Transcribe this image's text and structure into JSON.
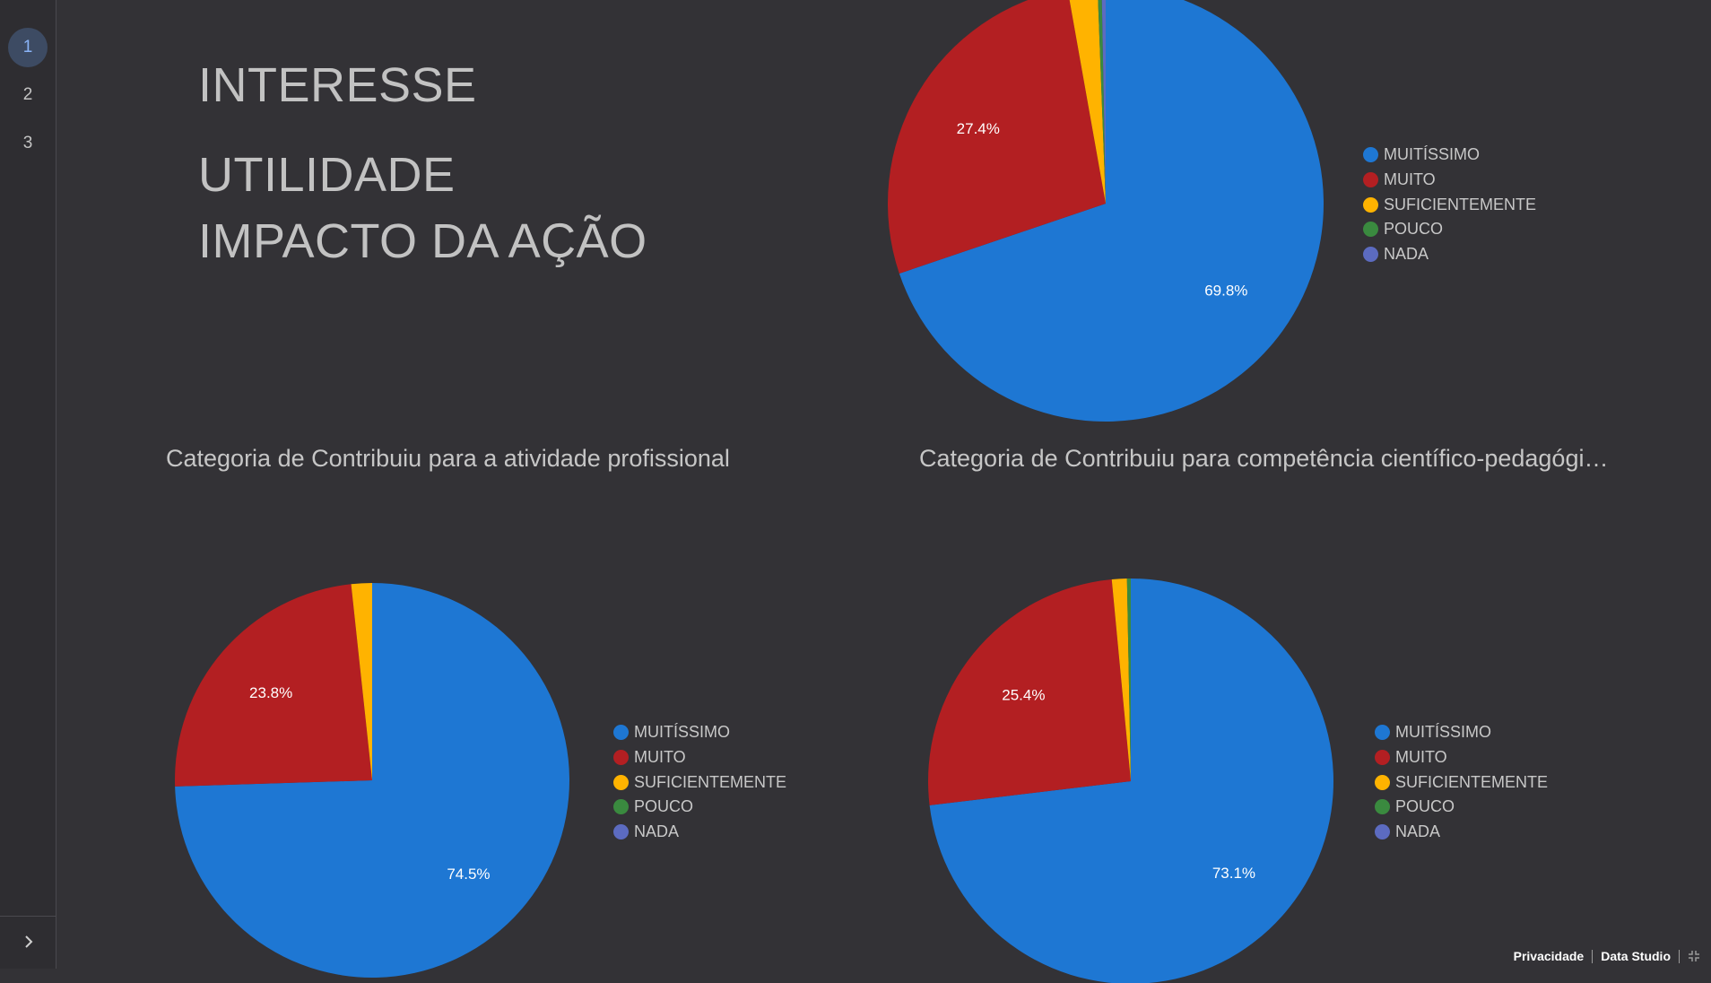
{
  "sidebar": {
    "pages": [
      {
        "label": "1",
        "active": true
      },
      {
        "label": "2",
        "active": false
      },
      {
        "label": "3",
        "active": false
      }
    ],
    "expand_icon": "chevron-right-icon"
  },
  "headings": {
    "interesse": "INTERESSE",
    "utilidade": "UTILIDADE",
    "impacto": "IMPACTO DA AÇÃO"
  },
  "charts": {
    "professional_title": "Categoria de Contribuiu para a atividade profissional",
    "competence_title": "Categoria de Contribuiu para competência científico-pedagógi…"
  },
  "legend_labels": [
    "MUITÍSSIMO",
    "MUITO",
    "SUFICIENTEMENTE",
    "POUCO",
    "NADA"
  ],
  "colors": {
    "muitissimo": "#1e77d3",
    "muito": "#b31f22",
    "suficientemente": "#ffb300",
    "pouco": "#3a8a3f",
    "nada": "#5c6bc0",
    "background": "#333236"
  },
  "chart_data": [
    {
      "type": "pie",
      "title": "",
      "categories": [
        "MUITÍSSIMO",
        "MUITO",
        "SUFICIENTEMENTE",
        "POUCO",
        "NADA"
      ],
      "values": [
        69.8,
        27.4,
        2.2,
        0.3,
        0.3
      ],
      "data_labels": [
        "69.8%",
        "27.4%",
        "",
        "",
        ""
      ],
      "legend": "right"
    },
    {
      "type": "pie",
      "title": "Categoria de Contribuiu para a atividade profissional",
      "categories": [
        "MUITÍSSIMO",
        "MUITO",
        "SUFICIENTEMENTE",
        "POUCO",
        "NADA"
      ],
      "values": [
        74.5,
        23.8,
        1.7,
        0,
        0
      ],
      "data_labels": [
        "74.5%",
        "23.8%",
        "",
        "",
        ""
      ],
      "legend": "right"
    },
    {
      "type": "pie",
      "title": "Categoria de Contribuiu para competência científico-pedagógi…",
      "categories": [
        "MUITÍSSIMO",
        "MUITO",
        "SUFICIENTEMENTE",
        "POUCO",
        "NADA"
      ],
      "values": [
        73.1,
        25.4,
        1.2,
        0.3,
        0
      ],
      "data_labels": [
        "73.1%",
        "25.4%",
        "",
        "",
        ""
      ],
      "legend": "right"
    }
  ],
  "footer": {
    "privacy": "Privacidade",
    "data_studio": "Data Studio",
    "fullscreen_icon": "exit-fullscreen-icon"
  }
}
